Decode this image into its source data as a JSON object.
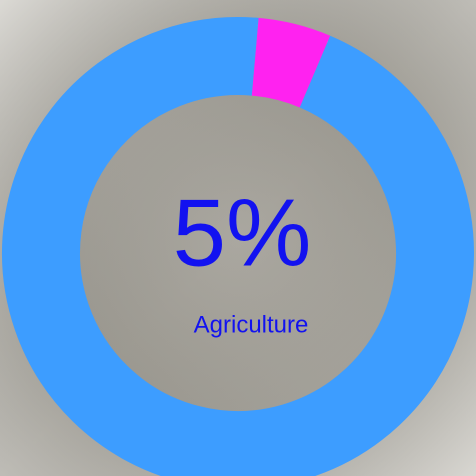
{
  "chart_data": {
    "type": "donut",
    "categories": [
      "Agriculture",
      null
    ],
    "values": [
      5,
      95
    ],
    "value_labels": [
      "5%",
      null
    ],
    "colors": [
      "#ff22f0",
      "#3d9dff"
    ]
  }
}
